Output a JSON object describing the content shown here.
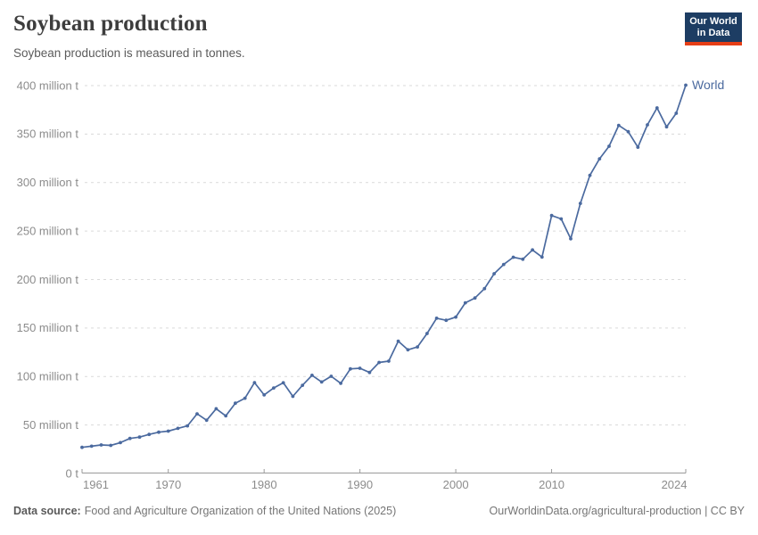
{
  "header": {
    "title": "Soybean production",
    "subtitle": "Soybean production is measured in tonnes.",
    "logo": {
      "line1": "Our World",
      "line2": "in Data"
    }
  },
  "chart_data": {
    "type": "line",
    "title": "Soybean production",
    "ylabel": "",
    "xlabel": "",
    "unit": "tonnes",
    "values_unit": "million tonnes",
    "grid": true,
    "legend": "line-end-label",
    "xlim": [
      1961,
      2024
    ],
    "ylim_million_t": [
      0,
      400
    ],
    "x": [
      1961,
      1962,
      1963,
      1964,
      1965,
      1966,
      1967,
      1968,
      1969,
      1970,
      1971,
      1972,
      1973,
      1974,
      1975,
      1976,
      1977,
      1978,
      1979,
      1980,
      1981,
      1982,
      1983,
      1984,
      1985,
      1986,
      1987,
      1988,
      1989,
      1990,
      1991,
      1992,
      1993,
      1994,
      1995,
      1996,
      1997,
      1998,
      1999,
      2000,
      2001,
      2002,
      2003,
      2004,
      2005,
      2006,
      2007,
      2008,
      2009,
      2010,
      2011,
      2012,
      2013,
      2014,
      2015,
      2016,
      2017,
      2018,
      2019,
      2020,
      2021,
      2022,
      2023,
      2024
    ],
    "series": [
      {
        "name": "World",
        "color": "#4B6A9F",
        "values": [
          26.9,
          28.1,
          29.4,
          29.0,
          31.8,
          36.1,
          37.5,
          40.3,
          42.6,
          43.7,
          46.5,
          49.1,
          61.5,
          54.9,
          66.8,
          59.4,
          72.5,
          77.6,
          93.7,
          81.0,
          88.2,
          93.5,
          79.5,
          90.9,
          101.2,
          94.3,
          100.2,
          93.0,
          107.9,
          108.5,
          104.2,
          114.5,
          115.9,
          136.5,
          127.5,
          130.5,
          144.4,
          160.1,
          158.0,
          161.3,
          176.0,
          181.0,
          190.6,
          206.0,
          215.5,
          223.0,
          221.0,
          230.5,
          223.2,
          266.0,
          262.5,
          242.0,
          278.5,
          307.5,
          324.5,
          337.5,
          359.0,
          352.5,
          336.5,
          359.5,
          377.0,
          357.5,
          371.5,
          400.5
        ]
      }
    ],
    "y_ticks": [
      {
        "value": 0,
        "label": "0 t"
      },
      {
        "value": 50,
        "label": "50 million t"
      },
      {
        "value": 100,
        "label": "100 million t"
      },
      {
        "value": 150,
        "label": "150 million t"
      },
      {
        "value": 200,
        "label": "200 million t"
      },
      {
        "value": 250,
        "label": "250 million t"
      },
      {
        "value": 300,
        "label": "300 million t"
      },
      {
        "value": 350,
        "label": "350 million t"
      },
      {
        "value": 400,
        "label": "400 million t"
      }
    ],
    "x_ticks": [
      {
        "value": 1961,
        "label": "1961",
        "align": "start"
      },
      {
        "value": 1970,
        "label": "1970",
        "align": "middle"
      },
      {
        "value": 1980,
        "label": "1980",
        "align": "middle"
      },
      {
        "value": 1990,
        "label": "1990",
        "align": "middle"
      },
      {
        "value": 2000,
        "label": "2000",
        "align": "middle"
      },
      {
        "value": 2010,
        "label": "2010",
        "align": "middle"
      },
      {
        "value": 2024,
        "label": "2024",
        "align": "end"
      }
    ]
  },
  "footer": {
    "source_label": "Data source:",
    "source_text": "Food and Agriculture Organization of the United Nations (2025)",
    "link_text": "OurWorldinData.org/agricultural-production | CC BY"
  },
  "colors": {
    "series_blue": "#4B6A9F",
    "logo_bg": "#1D3D63",
    "logo_accent": "#E63E16",
    "grid": "#DADADA",
    "axis": "#9A9A9A",
    "tick_text": "#8C8C8C",
    "title_text": "#3D3D3D",
    "subtitle_text": "#5B5B5B"
  }
}
